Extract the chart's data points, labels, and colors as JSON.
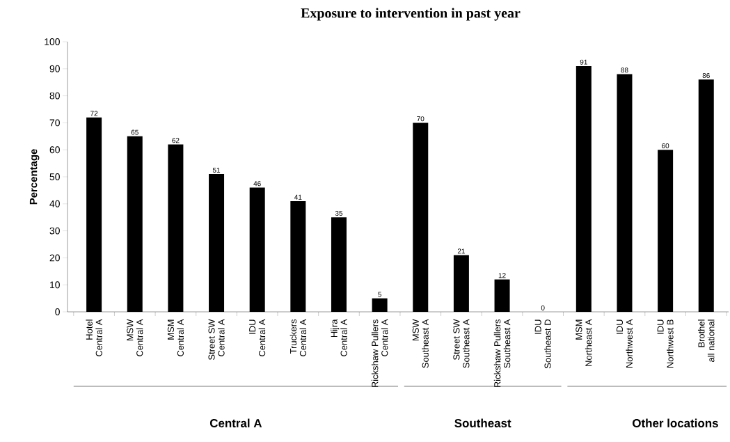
{
  "chart_data": {
    "type": "bar",
    "title": "Exposure to intervention in past year",
    "ylabel": "Percentage",
    "categories": [
      "Hotel\nCentral A",
      "MSW\nCentral A",
      "MSM\nCentral A",
      "Street SW\nCentral A",
      "IDU\nCentral A",
      "Truckers\nCentral A",
      "Hijra\nCentral A",
      "Rickshaw Pullers\nCentral A",
      "MSW\nSoutheast A",
      "Street SW\nSoutheast A",
      "Rickshaw Pullers\nSoutheast A",
      "IDU\nSoutheast D",
      "MSM\nNortheast A",
      "IDU\nNorthwest A",
      "IDU\nNorthwest B",
      "Brothel\nall national"
    ],
    "values": [
      72,
      65,
      62,
      51,
      46,
      41,
      35,
      5,
      70,
      21,
      12,
      0,
      91,
      88,
      60,
      86
    ],
    "color": "#000000",
    "data_labels": true,
    "grid": false,
    "legend": false,
    "ylim": [
      0,
      100
    ],
    "yticks": [
      0,
      10,
      20,
      30,
      40,
      50,
      60,
      70,
      80,
      90,
      100
    ],
    "annotations": [
      "Central A",
      "Southeast",
      "Other locations"
    ]
  }
}
